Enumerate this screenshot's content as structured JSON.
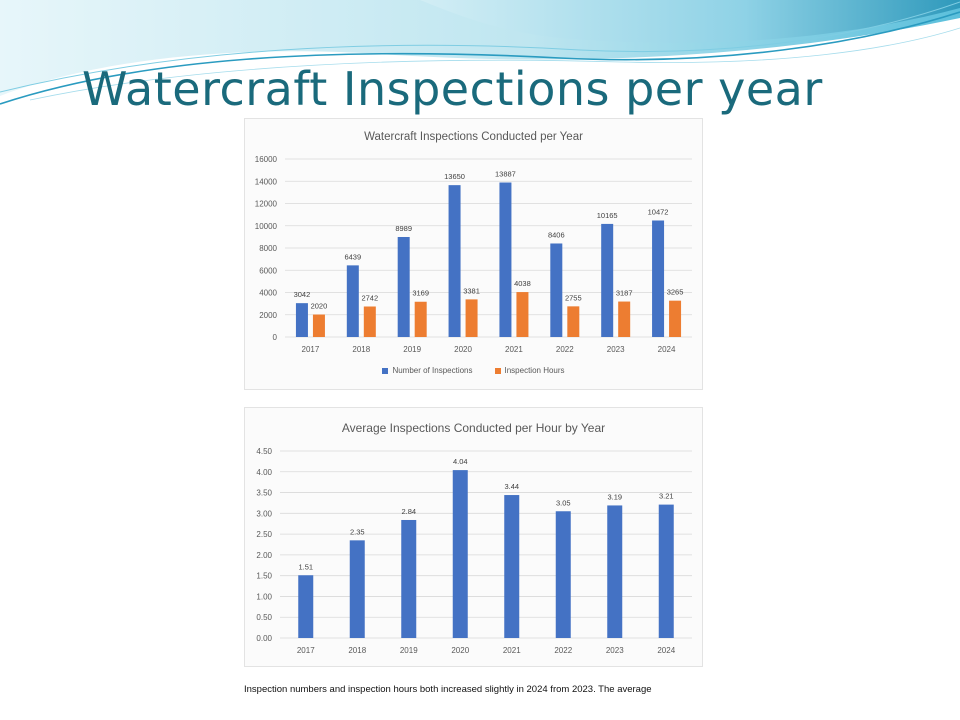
{
  "slide": {
    "title": "Watercraft Inspections per year",
    "caption": "Inspection numbers and inspection hours both increased slightly in 2024 from 2023. The average"
  },
  "colors": {
    "title": "#1a6a7c",
    "bar_blue": "#4472c4",
    "bar_orange": "#ed7d31",
    "gridline": "#d9d9d9",
    "text": "#595959",
    "banner_light": "#bfe6f0",
    "banner_mid": "#6cc4dc",
    "banner_dark": "#2a95b8"
  },
  "chart_data": [
    {
      "type": "bar",
      "title": "Watercraft Inspections Conducted per Year",
      "categories": [
        "2017",
        "2018",
        "2019",
        "2020",
        "2021",
        "2022",
        "2023",
        "2024"
      ],
      "series": [
        {
          "name": "Number of Inspections",
          "values": [
            3042,
            6439,
            8989,
            13650,
            13887,
            8406,
            10165,
            10472
          ]
        },
        {
          "name": "Inspection Hours",
          "values": [
            2020,
            2742,
            3169,
            3381,
            4038,
            2755,
            3187,
            3265
          ]
        }
      ],
      "ylim": [
        0,
        16000
      ],
      "yticks": [
        "0",
        "2000",
        "4000",
        "6000",
        "8000",
        "10000",
        "12000",
        "14000",
        "16000"
      ],
      "grid": true,
      "legend": "bottom",
      "xlabel": "",
      "ylabel": ""
    },
    {
      "type": "bar",
      "title": "Average Inspections Conducted per Hour by Year",
      "categories": [
        "2017",
        "2018",
        "2019",
        "2020",
        "2021",
        "2022",
        "2023",
        "2024"
      ],
      "series": [
        {
          "name": "Average Inspections per Hour",
          "values": [
            1.51,
            2.35,
            2.84,
            4.04,
            3.44,
            3.05,
            3.19,
            3.21
          ],
          "labels": [
            "1.51",
            "2.35",
            "2.84",
            "4.04",
            "3.44",
            "3.05",
            "3.19",
            "3.21"
          ]
        }
      ],
      "ylim": [
        0,
        4.5
      ],
      "yticks": [
        "0.00",
        "0.50",
        "1.00",
        "1.50",
        "2.00",
        "2.50",
        "3.00",
        "3.50",
        "4.00",
        "4.50"
      ],
      "grid": true,
      "legend": "none",
      "xlabel": "",
      "ylabel": ""
    }
  ]
}
